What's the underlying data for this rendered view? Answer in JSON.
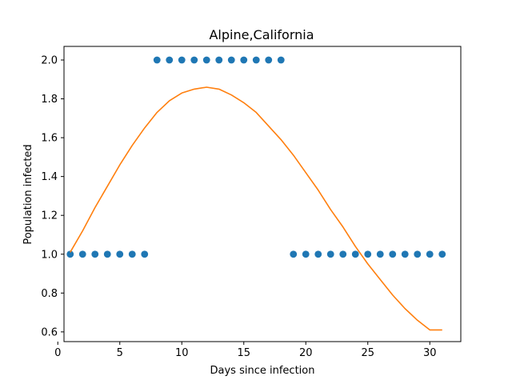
{
  "chart_data": {
    "type": "scatter",
    "title": "Alpine,California",
    "xlabel": "Days since infection",
    "ylabel": "Population infected",
    "xlim": [
      0.5,
      32.5
    ],
    "ylim": [
      0.55,
      2.07
    ],
    "x_ticks": [
      0,
      5,
      10,
      15,
      20,
      25,
      30
    ],
    "y_ticks": [
      0.6,
      0.8,
      1.0,
      1.2,
      1.4,
      1.6,
      1.8,
      2.0
    ],
    "x_tick_labels": [
      "0",
      "5",
      "10",
      "15",
      "20",
      "25",
      "30"
    ],
    "y_tick_labels": [
      "0.6",
      "0.8",
      "1.0",
      "1.2",
      "1.4",
      "1.6",
      "1.8",
      "2.0"
    ],
    "grid": false,
    "legend": "none",
    "series": [
      {
        "type": "scatter",
        "color": "#1f77b4",
        "x": [
          1,
          2,
          3,
          4,
          5,
          6,
          7,
          8,
          9,
          10,
          11,
          12,
          13,
          14,
          15,
          16,
          17,
          18,
          19,
          20,
          21,
          22,
          23,
          24,
          25,
          26,
          27,
          28,
          29,
          30,
          31
        ],
        "y": [
          1,
          1,
          1,
          1,
          1,
          1,
          1,
          2,
          2,
          2,
          2,
          2,
          2,
          2,
          2,
          2,
          2,
          2,
          1,
          1,
          1,
          1,
          1,
          1,
          1,
          1,
          1,
          1,
          1,
          1,
          1
        ]
      },
      {
        "type": "line",
        "color": "#ff7f0e",
        "x": [
          1,
          2,
          3,
          4,
          5,
          6,
          7,
          8,
          9,
          10,
          11,
          12,
          13,
          14,
          15,
          16,
          17,
          18,
          19,
          20,
          21,
          22,
          23,
          24,
          25,
          26,
          27,
          28,
          29,
          30,
          31
        ],
        "y": [
          1.01,
          1.12,
          1.24,
          1.35,
          1.46,
          1.56,
          1.65,
          1.73,
          1.79,
          1.83,
          1.85,
          1.86,
          1.85,
          1.82,
          1.78,
          1.73,
          1.66,
          1.59,
          1.51,
          1.42,
          1.33,
          1.23,
          1.14,
          1.04,
          0.95,
          0.87,
          0.79,
          0.72,
          0.66,
          0.61,
          0.61
        ]
      }
    ]
  }
}
